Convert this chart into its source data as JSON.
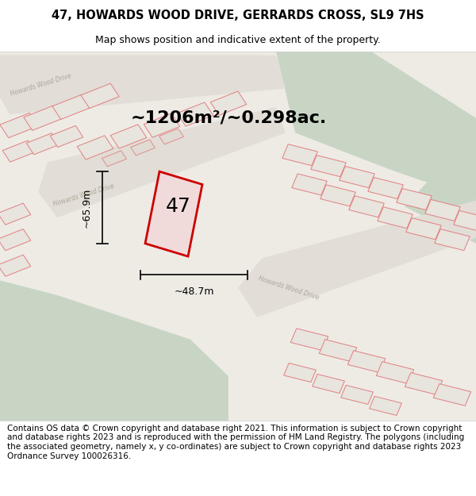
{
  "title_line1": "47, HOWARDS WOOD DRIVE, GERRARDS CROSS, SL9 7HS",
  "title_line2": "Map shows position and indicative extent of the property.",
  "footer_text": "Contains OS data © Crown copyright and database right 2021. This information is subject to Crown copyright and database rights 2023 and is reproduced with the permission of HM Land Registry. The polygons (including the associated geometry, namely x, y co-ordinates) are subject to Crown copyright and database rights 2023 Ordnance Survey 100026316.",
  "area_label": "~1206m²/~0.298ac.",
  "width_label": "~48.7m",
  "height_label": "~65.9m",
  "plot_number": "47",
  "map_bg": "#eeebe5",
  "green_color": "#c8d5c5",
  "road_fill": "#e2ddd7",
  "plot47_fill": "#f0dada",
  "plot47_stroke": "#cc0000",
  "other_fill": "#e8e4de",
  "other_stroke": "#e08080",
  "title_fontsize": 10.5,
  "subtitle_fontsize": 9,
  "area_fontsize": 16,
  "dim_fontsize": 9,
  "footer_fontsize": 7.5,
  "road_label_color": "#aaa898",
  "road_label_fontsize": 5.5
}
